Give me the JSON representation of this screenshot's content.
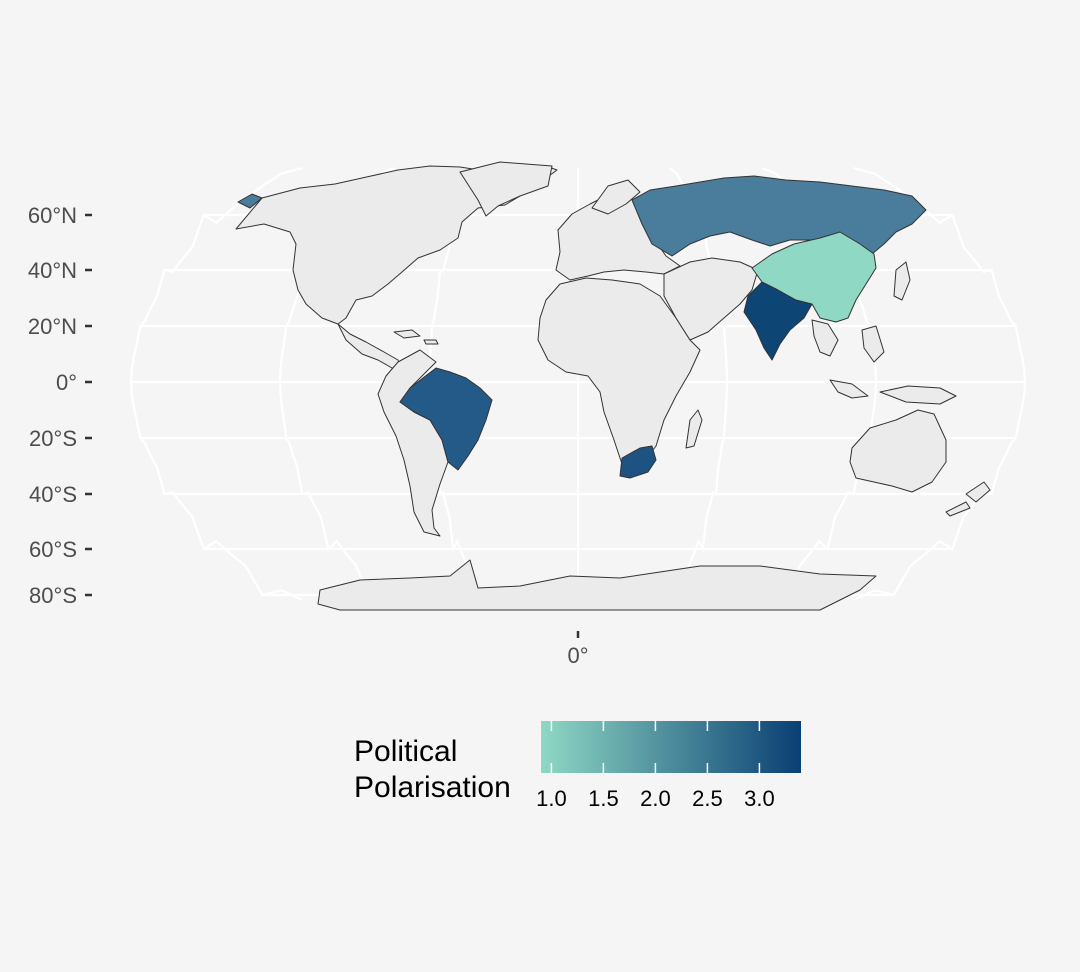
{
  "map": {
    "projection": "Robinson",
    "background": "#f5f5f5",
    "graticule_color": "#ffffff",
    "missing_color": "#ebebeb",
    "border_color": "#333333",
    "lat_axis": {
      "labels": [
        "60°N",
        "40°N",
        "20°N",
        "0°",
        "20°S",
        "40°S",
        "60°S",
        "80°S"
      ],
      "values": [
        60,
        40,
        20,
        0,
        -20,
        -40,
        -60,
        -80
      ]
    },
    "lon_axis": {
      "labels": [
        "0°"
      ],
      "values": [
        0
      ]
    },
    "graticule": {
      "parallels": [
        -80,
        -60,
        -40,
        -20,
        0,
        20,
        40,
        60
      ],
      "meridians": [
        -180,
        -120,
        -60,
        0,
        60,
        120,
        180
      ]
    }
  },
  "chart_data": {
    "type": "choropleth",
    "value_name": "Political Polarisation",
    "regions": [
      {
        "name": "Russia",
        "value": 2.3,
        "color": "#4a7c9b"
      },
      {
        "name": "China",
        "value": 1.0,
        "color": "#8fd8c4"
      },
      {
        "name": "India",
        "value": 3.35,
        "color": "#0d4574"
      },
      {
        "name": "Brazil",
        "value": 3.0,
        "color": "#245a88"
      },
      {
        "name": "South Africa",
        "value": 3.1,
        "color": "#1d5283"
      }
    ]
  },
  "legend": {
    "title_line1": "Political",
    "title_line2": "Polarisation",
    "min": 0.9,
    "max": 3.4,
    "color_low": "#8fd8c4",
    "color_high": "#0a3f73",
    "ticks": [
      {
        "value": 1.0,
        "label": "1.0"
      },
      {
        "value": 1.5,
        "label": "1.5"
      },
      {
        "value": 2.0,
        "label": "2.0"
      },
      {
        "value": 2.5,
        "label": "2.5"
      },
      {
        "value": 3.0,
        "label": "3.0"
      }
    ]
  }
}
